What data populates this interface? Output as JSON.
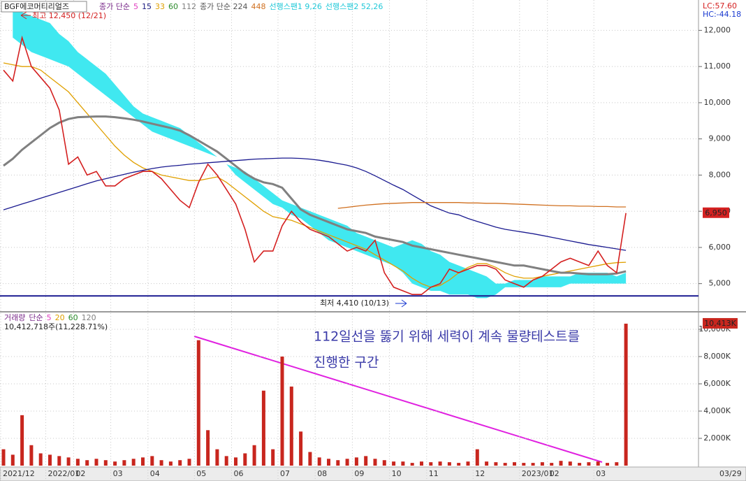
{
  "chart_data": {
    "type": "line",
    "title": "BGF에코머티리얼즈",
    "legend": [
      {
        "text": "종가 단순",
        "color": "#7a2a8a"
      },
      {
        "text": "5",
        "color": "#e040c0"
      },
      {
        "text": "15",
        "color": "#1a1a80"
      },
      {
        "text": "33",
        "color": "#e0a000"
      },
      {
        "text": "60",
        "color": "#2a8a2a"
      },
      {
        "text": "112",
        "color": "#808080"
      },
      {
        "text": "종가 단순 224",
        "color": "#555555"
      },
      {
        "text": "448",
        "color": "#d07020"
      },
      {
        "text": "선행스팬1 9,26",
        "color": "#20c8d8"
      },
      {
        "text": "선행스팬2 52,26",
        "color": "#20c8d8"
      }
    ],
    "lc_label": "LC:57.60",
    "hc_label": "HC:-44.18",
    "high_label": "최고 12,450 (12/21)",
    "low_label": "최저 4,410 (10/13)",
    "annotations": [
      "112일선을 뚫기 위해 세력이 계속 물량테스트를",
      "진행한 구간"
    ],
    "categories": [
      "2021/12",
      null,
      null,
      null,
      null,
      "2022/01",
      null,
      null,
      "02",
      null,
      null,
      null,
      "03",
      null,
      null,
      null,
      "04",
      null,
      null,
      null,
      null,
      "05",
      null,
      null,
      null,
      "06",
      null,
      null,
      null,
      null,
      "07",
      null,
      null,
      null,
      "08",
      null,
      null,
      null,
      "09",
      null,
      null,
      null,
      "10",
      null,
      null,
      null,
      "11",
      null,
      null,
      null,
      null,
      "12",
      null,
      null,
      null,
      null,
      "2023/01",
      null,
      null,
      "02",
      null,
      null,
      null,
      null,
      "03",
      null,
      null,
      null
    ],
    "last_date": "03/29",
    "values": [
      10900,
      10600,
      11800,
      11000,
      10700,
      10400,
      9800,
      8300,
      8500,
      8000,
      8100,
      7700,
      7700,
      7900,
      8000,
      8100,
      8100,
      7900,
      7600,
      7300,
      7100,
      7800,
      8300,
      8000,
      7600,
      7200,
      6500,
      5600,
      5900,
      5900,
      6600,
      7000,
      6700,
      6500,
      6400,
      6300,
      6100,
      5900,
      6000,
      5900,
      6200,
      5300,
      4900,
      4800,
      4700,
      4700,
      4900,
      5000,
      5400,
      5300,
      5400,
      5500,
      5500,
      5400,
      5100,
      5000,
      4900,
      5100,
      5200,
      5400,
      5600,
      5700,
      5600,
      5500,
      5900,
      5500,
      5300,
      6950
    ],
    "color": "#d42020",
    "last_value_label": "6,950",
    "cloud": {
      "color": "#40e8f0",
      "span1": [
        null,
        12500,
        12500,
        12400,
        12300,
        12200,
        11900,
        11700,
        11400,
        11200,
        11000,
        10800,
        10500,
        10200,
        9900,
        9700,
        9600,
        9500,
        9400,
        9300,
        9100,
        8900,
        8700,
        8500,
        8300,
        8200,
        8100,
        7900,
        7700,
        7500,
        7300,
        7200,
        7100,
        7000,
        6900,
        6800,
        6700,
        6600,
        6400,
        6300,
        6200,
        6100,
        6000,
        6100,
        6200,
        6100,
        5900,
        5800,
        5600,
        5500,
        5400,
        5300,
        5200,
        5000,
        5000,
        5100,
        5100,
        5100,
        5200,
        5200,
        5200,
        5200,
        5300,
        5300,
        5300,
        5300,
        5200,
        5300
      ],
      "span2": [
        null,
        11800,
        11600,
        11400,
        11300,
        11200,
        11100,
        11000,
        10800,
        10600,
        10400,
        10200,
        10000,
        9800,
        9600,
        9400,
        9200,
        9100,
        9000,
        8900,
        8800,
        8700,
        8600,
        8500,
        8300,
        8000,
        7800,
        7600,
        7400,
        7200,
        7100,
        6900,
        6800,
        6600,
        6400,
        6200,
        6100,
        6000,
        5900,
        5800,
        5700,
        5600,
        5500,
        5300,
        5000,
        4900,
        4800,
        4800,
        4700,
        4700,
        4700,
        4600,
        4600,
        4700,
        4900,
        4900,
        4900,
        4900,
        4900,
        4900,
        4900,
        5000,
        5000,
        5000,
        5000,
        5000,
        5000,
        5000
      ]
    },
    "lines": [
      {
        "color": "#e0a000",
        "values": [
          11100,
          11050,
          11000,
          11000,
          10900,
          10700,
          10500,
          10300,
          10000,
          9700,
          9400,
          9100,
          8800,
          8550,
          8350,
          8200,
          8100,
          8000,
          7950,
          7900,
          7850,
          7850,
          7900,
          7950,
          7800,
          7600,
          7400,
          7200,
          7000,
          6850,
          6800,
          6750,
          6650,
          6550,
          6450,
          6350,
          6250,
          6150,
          6050,
          5950,
          5800,
          5650,
          5500,
          5350,
          5150,
          5000,
          4900,
          4950,
          5100,
          5300,
          5450,
          5550,
          5550,
          5450,
          5300,
          5200,
          5150,
          5150,
          5200,
          5250,
          5300,
          5350,
          5400,
          5450,
          5500,
          5550,
          5580,
          5590
        ]
      },
      {
        "color": "#808080",
        "values": [
          8260,
          8450,
          8700,
          8900,
          9100,
          9300,
          9450,
          9550,
          9600,
          9610,
          9620,
          9620,
          9600,
          9570,
          9530,
          9480,
          9420,
          9360,
          9300,
          9230,
          9100,
          8950,
          8800,
          8650,
          8450,
          8250,
          8050,
          7900,
          7800,
          7750,
          7650,
          7350,
          7050,
          6900,
          6800,
          6700,
          6600,
          6500,
          6450,
          6400,
          6300,
          6250,
          6200,
          6150,
          6050,
          6000,
          5950,
          5900,
          5850,
          5800,
          5750,
          5700,
          5650,
          5600,
          5550,
          5500,
          5500,
          5450,
          5400,
          5350,
          5300,
          5300,
          5280,
          5260,
          5260,
          5260,
          5280,
          5340
        ]
      },
      {
        "color": "#1a1a90",
        "values": [
          7040,
          7120,
          7200,
          7280,
          7360,
          7440,
          7520,
          7600,
          7680,
          7760,
          7840,
          7900,
          7960,
          8020,
          8080,
          8130,
          8180,
          8220,
          8250,
          8270,
          8300,
          8320,
          8340,
          8360,
          8380,
          8400,
          8420,
          8440,
          8450,
          8460,
          8470,
          8470,
          8460,
          8440,
          8410,
          8370,
          8320,
          8270,
          8200,
          8100,
          7980,
          7850,
          7720,
          7600,
          7450,
          7300,
          7150,
          7050,
          6950,
          6900,
          6800,
          6720,
          6640,
          6560,
          6500,
          6460,
          6420,
          6380,
          6330,
          6280,
          6230,
          6180,
          6130,
          6080,
          6040,
          6000,
          5960,
          5920
        ]
      },
      {
        "color": "#d07020",
        "values": [
          null,
          null,
          null,
          null,
          null,
          null,
          null,
          null,
          null,
          null,
          null,
          null,
          null,
          null,
          null,
          null,
          null,
          null,
          null,
          null,
          null,
          null,
          null,
          null,
          null,
          null,
          null,
          null,
          null,
          null,
          null,
          null,
          null,
          null,
          null,
          null,
          7080,
          7110,
          7140,
          7170,
          7190,
          7210,
          7220,
          7230,
          7240,
          7240,
          7240,
          7240,
          7240,
          7240,
          7230,
          7230,
          7220,
          7220,
          7210,
          7200,
          7190,
          7180,
          7170,
          7160,
          7150,
          7150,
          7140,
          7140,
          7130,
          7130,
          7120,
          7120
        ]
      }
    ],
    "hline": 4660,
    "hline_color": "#1a1a90",
    "ylim": [
      4240,
      12800
    ],
    "yticks": [
      {
        "value": 5000,
        "label": "5,000"
      },
      {
        "value": 6000,
        "label": "6,000"
      },
      {
        "value": 7000,
        "label": "7,000"
      },
      {
        "value": 8000,
        "label": "8,000"
      },
      {
        "value": 9000,
        "label": "9,000"
      },
      {
        "value": 10000,
        "label": "10,000"
      },
      {
        "value": 11000,
        "label": "11,000"
      },
      {
        "value": 12000,
        "label": "12,000"
      }
    ],
    "grid": true,
    "volume": {
      "legend": [
        {
          "text": "거래량",
          "color": "#7a2a8a"
        },
        {
          "text": "단순",
          "color": "#7a2a8a"
        },
        {
          "text": "5",
          "color": "#e040c0"
        },
        {
          "text": "20",
          "color": "#e0a000"
        },
        {
          "text": "60",
          "color": "#2a8a2a"
        },
        {
          "text": "120",
          "color": "#808080"
        }
      ],
      "info": "10,412,718주(11,228.71%)",
      "color": "#c8261e",
      "values": [
        1200,
        800,
        3700,
        1500,
        900,
        800,
        700,
        600,
        500,
        400,
        500,
        400,
        300,
        400,
        500,
        600,
        700,
        400,
        300,
        400,
        500,
        9200,
        2600,
        1200,
        700,
        600,
        900,
        1500,
        5500,
        1200,
        8000,
        5800,
        2500,
        1000,
        600,
        500,
        400,
        500,
        600,
        700,
        500,
        400,
        300,
        300,
        200,
        300,
        250,
        300,
        250,
        200,
        300,
        1200,
        300,
        250,
        200,
        250,
        200,
        200,
        250,
        200,
        350,
        300,
        200,
        250,
        300,
        200,
        250,
        10413
      ],
      "last_value_label": "10,413K",
      "ylim": [
        0,
        11180
      ],
      "yticks": [
        {
          "value": 2000,
          "label": "2,000K"
        },
        {
          "value": 4000,
          "label": "4,000K"
        },
        {
          "value": 6000,
          "label": "6,000K"
        },
        {
          "value": 8000,
          "label": "8,000K"
        },
        {
          "value": 10000,
          "label": "10,000K"
        }
      ]
    }
  }
}
